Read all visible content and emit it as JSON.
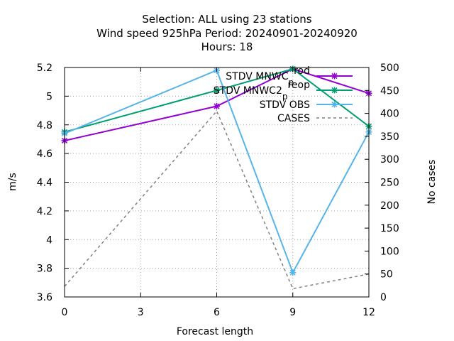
{
  "chart_data": {
    "type": "line",
    "title_lines": [
      "Selection: ALL using    23 stations",
      "Wind speed 925hPa   Period: 20240901-20240920",
      "Hours:  18"
    ],
    "xlabel": "Forecast length",
    "ylabel": "m/s",
    "y2label": "No cases",
    "x_ticks": [
      0,
      3,
      6,
      9,
      12
    ],
    "y_ticks": [
      "3.6",
      "3.8",
      "4",
      "4.2",
      "4.4",
      "4.6",
      "4.8",
      "5",
      "5.2"
    ],
    "y2_ticks": [
      0,
      50,
      100,
      150,
      200,
      250,
      300,
      350,
      400,
      450,
      500
    ],
    "xlim": [
      0,
      12
    ],
    "ylim": [
      3.6,
      5.2
    ],
    "y2lim": [
      0,
      500
    ],
    "grid": true,
    "legend_position": "top-right",
    "series": [
      {
        "name": "STDV MNWC_prod",
        "legend_main": "STDV MNWC",
        "legend_sub": "p",
        "legend_sup": "rod",
        "color": "#9400d3",
        "axis": "y",
        "marker": "x",
        "dashed": false,
        "x": [
          0,
          6,
          9,
          12
        ],
        "y": [
          4.69,
          4.93,
          5.19,
          5.02
        ]
      },
      {
        "name": "STDV MNWC2_preop",
        "legend_main": "STDV MNWC2",
        "legend_sub": "p",
        "legend_sup": "reop",
        "color": "#009e73",
        "axis": "y",
        "marker": "x",
        "dashed": false,
        "x": [
          0,
          6,
          9,
          12
        ],
        "y": [
          4.75,
          5.04,
          5.19,
          4.79
        ]
      },
      {
        "name": "STDV OBS",
        "legend_main": "STDV OBS",
        "color": "#56b4e9",
        "axis": "y",
        "marker": "x",
        "dashed": false,
        "x": [
          0,
          6,
          9,
          12
        ],
        "y": [
          4.74,
          5.18,
          3.77,
          4.75
        ]
      },
      {
        "name": "CASES",
        "legend_main": "CASES",
        "color": "#808080",
        "axis": "y2",
        "marker": "none",
        "dashed": true,
        "x": [
          0,
          6,
          9,
          12
        ],
        "y": [
          23,
          405,
          18,
          50
        ]
      }
    ]
  }
}
